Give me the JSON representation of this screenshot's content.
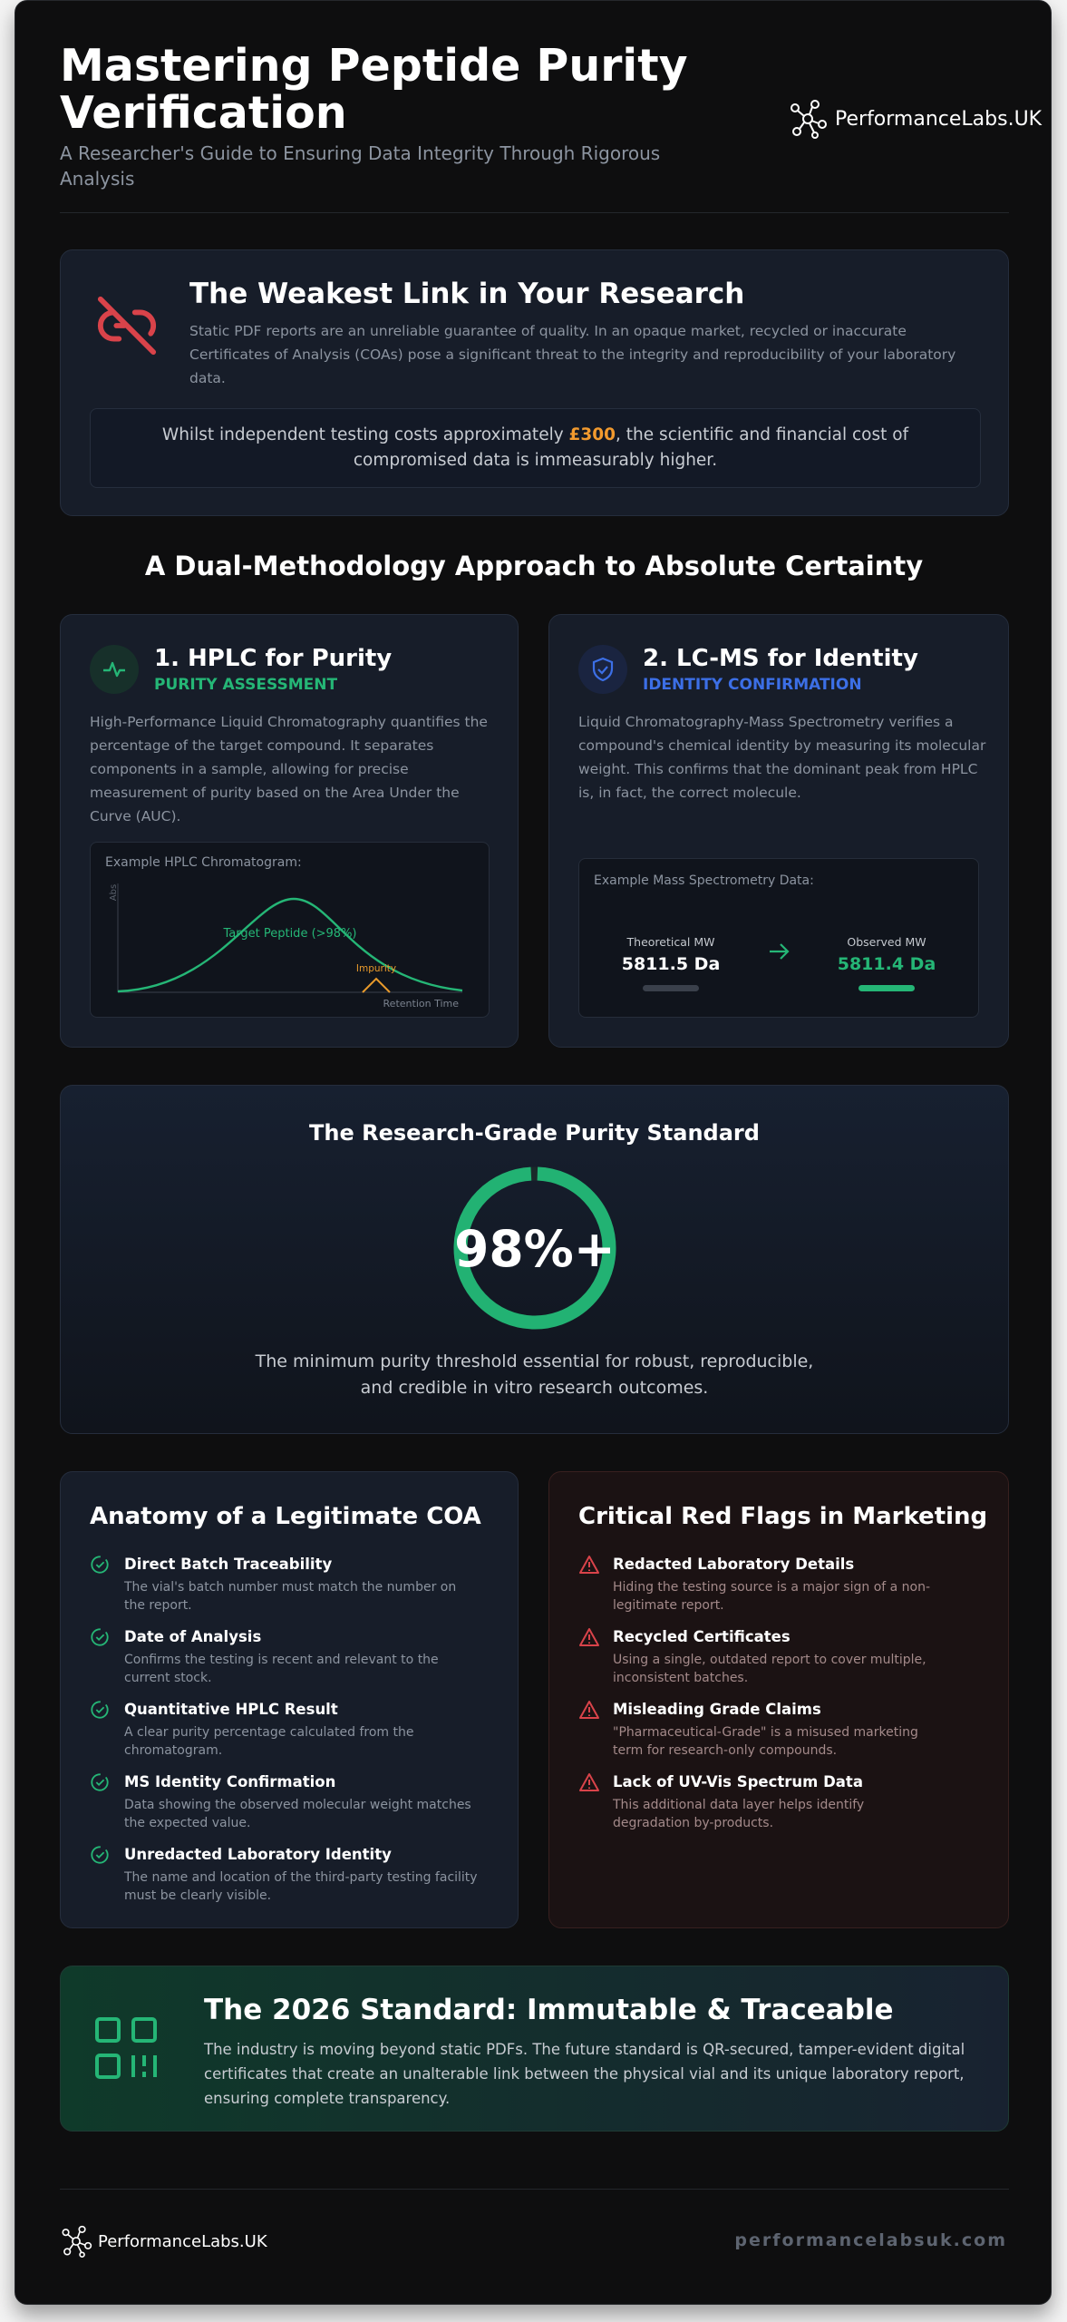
{
  "header": {
    "title": "Mastering Peptide Purity Verification",
    "subtitle": "A Researcher's Guide to Ensuring Data Integrity Through Rigorous Analysis",
    "brand": "PerformanceLabs.UK"
  },
  "weakest_link": {
    "title": "The Weakest Link in Your Research",
    "body": "Static PDF reports are an unreliable guarantee of quality. In an opaque market, recycled or inaccurate Certificates of Analysis (COAs) pose a significant threat to the integrity and reproducibility of your laboratory data.",
    "callout": {
      "before": "Whilst independent testing costs approximately ",
      "highlight": "£300",
      "after": ", the scientific and financial cost of compromised data is immeasurably higher."
    }
  },
  "methods": {
    "title": "A Dual-Methodology Approach to Absolute Certainty",
    "hplc": {
      "title": "1. HPLC for Purity",
      "tag": "PURITY ASSESSMENT",
      "body": "High-Performance Liquid Chromatography quantifies the percentage of the target compound. It separates components in a sample, allowing for precise measurement of purity based on the Area Under the Curve (AUC).",
      "chart": {
        "caption": "Example HPLC Chromatogram:",
        "y_label": "Abs",
        "peak_label": "Target Peptide (>98%)",
        "impurity_label": "Impurity",
        "x_label": "Retention Time"
      }
    },
    "lcms": {
      "title": "2. LC-MS for Identity",
      "tag": "IDENTITY CONFIRMATION",
      "body": "Liquid Chromatography-Mass Spectrometry verifies a compound's chemical identity by measuring its molecular weight. This confirms that the dominant peak from HPLC is, in fact, the correct molecule.",
      "panel": {
        "caption": "Example Mass Spectrometry Data:",
        "theoretical_label": "Theoretical MW",
        "theoretical_value": "5811.5 Da",
        "observed_label": "Observed MW",
        "observed_value": "5811.4 Da"
      }
    }
  },
  "purity_standard": {
    "title": "The Research-Grade Purity Standard",
    "value": "98%+",
    "caption": "The minimum purity threshold essential for robust, reproducible, and credible in vitro research outcomes."
  },
  "coa": {
    "title": "Anatomy of a Legitimate COA",
    "items": [
      {
        "title": "Direct Batch Traceability",
        "desc": "The vial's batch number must match the number on the report."
      },
      {
        "title": "Date of Analysis",
        "desc": "Confirms the testing is recent and relevant to the current stock."
      },
      {
        "title": "Quantitative HPLC Result",
        "desc": "A clear purity percentage calculated from the chromatogram."
      },
      {
        "title": "MS Identity Confirmation",
        "desc": "Data showing the observed molecular weight matches the expected value."
      },
      {
        "title": "Unredacted Laboratory Identity",
        "desc": "The name and location of the third-party testing facility must be clearly visible."
      }
    ]
  },
  "red_flags": {
    "title": "Critical Red Flags in Marketing",
    "items": [
      {
        "title": "Redacted Laboratory Details",
        "desc": "Hiding the testing source is a major sign of a non-legitimate report."
      },
      {
        "title": "Recycled Certificates",
        "desc": "Using a single, outdated report to cover multiple, inconsistent batches."
      },
      {
        "title": "Misleading Grade Claims",
        "desc": "\"Pharmaceutical-Grade\" is a misused marketing term for research-only compounds."
      },
      {
        "title": "Lack of UV-Vis Spectrum Data",
        "desc": "This additional data layer helps identify degradation by-products."
      }
    ]
  },
  "standard_2026": {
    "title": "The 2026 Standard: Immutable & Traceable",
    "body": "The industry is moving beyond static PDFs. The future standard is QR-secured, tamper-evident digital certificates that create an unalterable link between the physical vial and its unique laboratory report, ensuring complete transparency."
  },
  "footer": {
    "brand": "PerformanceLabs.UK",
    "url": "performancelabsuk.com"
  }
}
